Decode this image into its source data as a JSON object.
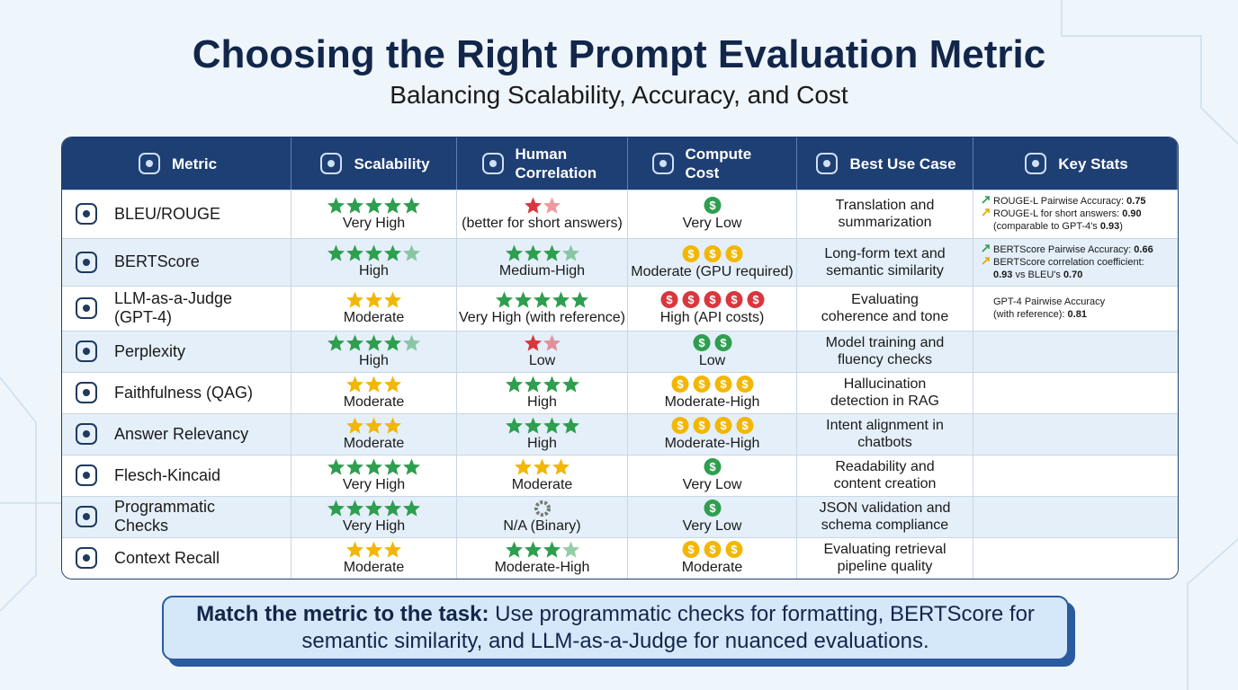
{
  "header": {
    "title": "Choosing the Right Prompt Evaluation Metric",
    "subtitle": "Balancing Scalability, Accuracy, and Cost"
  },
  "table": {
    "columns": [
      "Metric",
      "Scalability",
      "Human Correlation",
      "Compute Cost",
      "Best Use Case",
      "Key Stats"
    ],
    "coin_symbol": "$",
    "rows": [
      {
        "metric": "BLEU/ROUGE",
        "scalability": {
          "rating": 5,
          "label": "Very High"
        },
        "human": {
          "rating": 1.5,
          "label": "(better for short answers)"
        },
        "cost": {
          "coins": 1,
          "label": "Very Low"
        },
        "use_case": "Translation and summarization",
        "stats": [
          {
            "arrow": "#2e9e4f",
            "parts": [
              {
                "t": "ROUGE-L Pairwise Accuracy: "
              },
              {
                "t": "0.75",
                "b": true
              }
            ]
          },
          {
            "arrow": "#e0a800",
            "parts": [
              {
                "t": "ROUGE-L for short answers: "
              },
              {
                "t": "0.90",
                "b": true
              }
            ]
          },
          {
            "parts": [
              {
                "t": "(comparable to GPT-4's "
              },
              {
                "t": "0.93",
                "b": true
              },
              {
                "t": ")"
              }
            ]
          }
        ]
      },
      {
        "metric": "BERTScore",
        "scalability": {
          "rating": 4.5,
          "label": "High"
        },
        "human": {
          "rating": 3.5,
          "label": "Medium-High"
        },
        "cost": {
          "coins": 3,
          "label": "Moderate (GPU required)"
        },
        "use_case": "Long-form text and semantic similarity",
        "stats": [
          {
            "arrow": "#2e9e4f",
            "parts": [
              {
                "t": "BERTScore Pairwise Accuracy: "
              },
              {
                "t": "0.66",
                "b": true
              }
            ]
          },
          {
            "arrow": "#e0a800",
            "parts": [
              {
                "t": "BERTScore correlation coefficient:"
              }
            ]
          },
          {
            "parts": [
              {
                "t": "0.93",
                "b": true
              },
              {
                "t": " vs BLEU's "
              },
              {
                "t": "0.70",
                "b": true
              }
            ]
          }
        ]
      },
      {
        "metric": "LLM-as-a-Judge (GPT-4)",
        "scalability": {
          "rating": 3,
          "label": "Moderate"
        },
        "human": {
          "rating": 5,
          "label": "Very High (with reference)"
        },
        "cost": {
          "coins": 5,
          "label": "High (API costs)"
        },
        "use_case": "Evaluating coherence and tone",
        "stats": [
          {
            "parts": [
              {
                "t": "GPT-4 Pairwise Accuracy"
              }
            ]
          },
          {
            "parts": [
              {
                "t": "(with reference): "
              },
              {
                "t": "0.81",
                "b": true
              }
            ]
          }
        ]
      },
      {
        "metric": "Perplexity",
        "scalability": {
          "rating": 4.5,
          "label": "High"
        },
        "human": {
          "rating": 1.5,
          "label": "Low"
        },
        "cost": {
          "coins": 2,
          "label": "Low"
        },
        "use_case": "Model training and fluency checks"
      },
      {
        "metric": "Faithfulness (QAG)",
        "scalability": {
          "rating": 3,
          "label": "Moderate"
        },
        "human": {
          "rating": 4,
          "label": "High"
        },
        "cost": {
          "coins": 4,
          "label": "Moderate-High"
        },
        "use_case": "Hallucination detection in RAG"
      },
      {
        "metric": "Answer Relevancy",
        "scalability": {
          "rating": 3,
          "label": "Moderate"
        },
        "human": {
          "rating": 4,
          "label": "High"
        },
        "cost": {
          "coins": 4,
          "label": "Moderate-High"
        },
        "use_case": "Intent alignment in chatbots"
      },
      {
        "metric": "Flesch-Kincaid",
        "scalability": {
          "rating": 5,
          "label": "Very High"
        },
        "human": {
          "rating": 3,
          "label": "Moderate"
        },
        "cost": {
          "coins": 1,
          "label": "Very Low"
        },
        "use_case": "Readability and content creation"
      },
      {
        "metric": "Programmatic Checks",
        "scalability": {
          "rating": 5,
          "label": "Very High"
        },
        "human": {
          "rating": null,
          "label": "N/A (Binary)"
        },
        "cost": {
          "coins": 1,
          "label": "Very Low"
        },
        "use_case": "JSON validation and schema compliance"
      },
      {
        "metric": "Context Recall",
        "scalability": {
          "rating": 3,
          "label": "Moderate"
        },
        "human": {
          "rating": 3.5,
          "label": "Moderate-High"
        },
        "cost": {
          "coins": 3,
          "label": "Moderate"
        },
        "use_case": "Evaluating retrieval pipeline quality"
      }
    ]
  },
  "footer": {
    "bold": "Match the metric to the task:",
    "text": " Use programmatic checks for formatting, BERTScore for semantic similarity, and LLM-as-a-Judge for nuanced evaluations."
  }
}
